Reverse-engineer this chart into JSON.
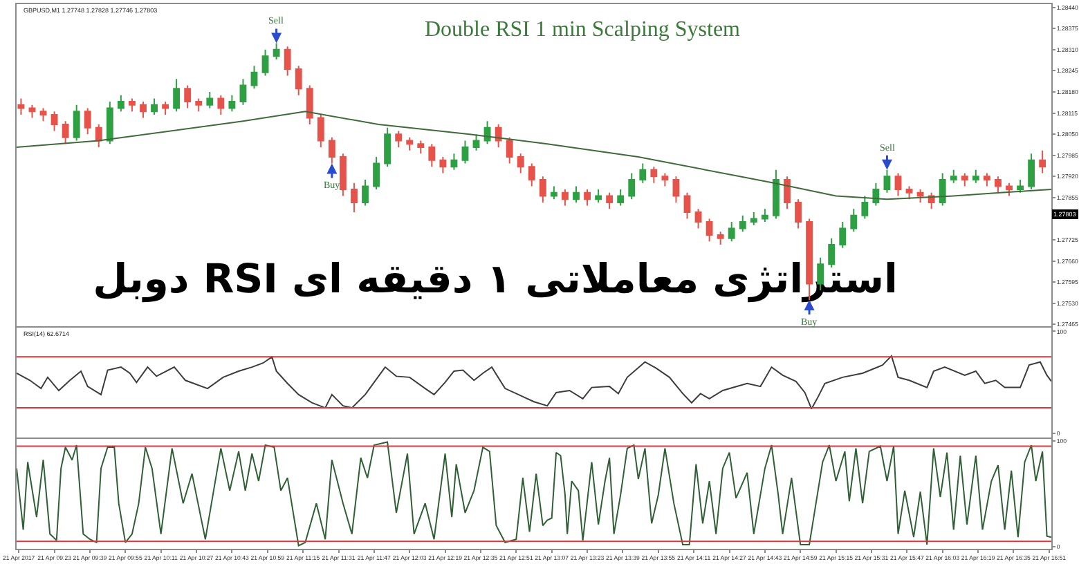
{
  "chart_data": [
    {
      "type": "candlestick",
      "title": "Double RSI 1 min Scalping System",
      "annotations": [
        "GBPUSD,M1 1.27748 1.27828 1.27746 1.27803",
        "استراتژی معاملاتی ۱ دقیقه ای RSI دوبل",
        {
          "text": "Sell",
          "x": "2017-04-21T11:03",
          "y": 1.2833
        },
        {
          "text": "Buy",
          "x": "2017-04-21T11:28",
          "y": 1.2796
        },
        {
          "text": "Buy",
          "x": "2017-04-21T15:03",
          "y": 1.2754
        },
        {
          "text": "Sell",
          "x": "2017-04-21T15:38",
          "y": 1.2794
        },
        {
          "text": "1.27803",
          "y": 1.27803
        }
      ],
      "xlim": [
        "2017-04-21T09:06",
        "2017-04-21T16:52"
      ],
      "tick_labels": "y",
      "ylim": [
        1.2746,
        1.2845
      ],
      "yticks": [
        {
          "value": 1.2844,
          "label": "1.28440"
        },
        1.28375,
        {
          "value": 1.2831,
          "label": "1.28310"
        },
        1.28245,
        {
          "value": 1.2818,
          "label": "1.28180"
        },
        1.28115,
        {
          "value": 1.2805,
          "label": "1.28050"
        },
        1.27985,
        {
          "value": 1.2792,
          "label": "1.27920"
        },
        1.27855,
        1.27725,
        {
          "value": 1.2766,
          "label": "1.27660"
        },
        1.27595,
        {
          "value": 1.2753,
          "label": "1.27530"
        },
        1.27465
      ],
      "x": [
        "2017-04-21T09:08",
        "2017-04-21T09:13",
        "2017-04-21T09:18",
        "2017-04-21T09:23",
        "2017-04-21T09:28",
        "2017-04-21T09:33",
        "2017-04-21T09:38",
        "2017-04-21T09:43",
        "2017-04-21T09:48",
        "2017-04-21T09:53",
        "2017-04-21T09:58",
        "2017-04-21T10:03",
        "2017-04-21T10:08",
        "2017-04-21T10:13",
        "2017-04-21T10:18",
        "2017-04-21T10:23",
        "2017-04-21T10:28",
        "2017-04-21T10:33",
        "2017-04-21T10:38",
        "2017-04-21T10:43",
        "2017-04-21T10:48",
        "2017-04-21T10:53",
        "2017-04-21T10:58",
        "2017-04-21T11:03",
        "2017-04-21T11:08",
        "2017-04-21T11:13",
        "2017-04-21T11:18",
        "2017-04-21T11:23",
        "2017-04-21T11:28",
        "2017-04-21T11:33",
        "2017-04-21T11:38",
        "2017-04-21T11:43",
        "2017-04-21T11:48",
        "2017-04-21T11:53",
        "2017-04-21T11:58",
        "2017-04-21T12:03",
        "2017-04-21T12:08",
        "2017-04-21T12:13",
        "2017-04-21T12:18",
        "2017-04-21T12:23",
        "2017-04-21T12:28",
        "2017-04-21T12:33",
        "2017-04-21T12:38",
        "2017-04-21T12:43",
        "2017-04-21T12:48",
        "2017-04-21T12:53",
        "2017-04-21T12:58",
        "2017-04-21T13:03",
        "2017-04-21T13:08",
        "2017-04-21T13:13",
        "2017-04-21T13:18",
        "2017-04-21T13:23",
        "2017-04-21T13:28",
        "2017-04-21T13:33",
        "2017-04-21T13:38",
        "2017-04-21T13:43",
        "2017-04-21T13:48",
        "2017-04-21T13:53",
        "2017-04-21T13:58",
        "2017-04-21T14:03",
        "2017-04-21T14:08",
        "2017-04-21T14:13",
        "2017-04-21T14:18",
        "2017-04-21T14:23",
        "2017-04-21T14:28",
        "2017-04-21T14:33",
        "2017-04-21T14:38",
        "2017-04-21T14:43",
        "2017-04-21T14:48",
        "2017-04-21T14:53",
        "2017-04-21T14:58",
        "2017-04-21T15:03",
        "2017-04-21T15:08",
        "2017-04-21T15:13",
        "2017-04-21T15:18",
        "2017-04-21T15:23",
        "2017-04-21T15:28",
        "2017-04-21T15:33",
        "2017-04-21T15:38",
        "2017-04-21T15:43",
        "2017-04-21T15:48",
        "2017-04-21T15:53",
        "2017-04-21T15:58",
        "2017-04-21T16:03",
        "2017-04-21T16:08",
        "2017-04-21T16:13",
        "2017-04-21T16:18",
        "2017-04-21T16:23",
        "2017-04-21T16:28",
        "2017-04-21T16:33",
        "2017-04-21T16:38",
        "2017-04-21T16:43",
        "2017-04-21T16:48"
      ],
      "ohlc": [
        [
          1.2814,
          1.2816,
          1.2811,
          1.2813
        ],
        [
          1.2813,
          1.2814,
          1.281,
          1.2812
        ],
        [
          1.2812,
          1.2813,
          1.2809,
          1.2811
        ],
        [
          1.2811,
          1.2812,
          1.2806,
          1.2808
        ],
        [
          1.2808,
          1.2809,
          1.2802,
          1.2804
        ],
        [
          1.2804,
          1.2814,
          1.2803,
          1.2812
        ],
        [
          1.2812,
          1.2813,
          1.2805,
          1.2807
        ],
        [
          1.2807,
          1.2808,
          1.2801,
          1.2803
        ],
        [
          1.2803,
          1.2815,
          1.2802,
          1.2813
        ],
        [
          1.2813,
          1.2817,
          1.2812,
          1.2815
        ],
        [
          1.2815,
          1.2816,
          1.2812,
          1.2814
        ],
        [
          1.2814,
          1.2815,
          1.281,
          1.2812
        ],
        [
          1.2812,
          1.2816,
          1.2811,
          1.2814
        ],
        [
          1.2814,
          1.2815,
          1.2811,
          1.2813
        ],
        [
          1.2813,
          1.2822,
          1.2812,
          1.2819
        ],
        [
          1.2819,
          1.282,
          1.2813,
          1.2815
        ],
        [
          1.2815,
          1.2816,
          1.2812,
          1.2814
        ],
        [
          1.2814,
          1.2818,
          1.2813,
          1.2816
        ],
        [
          1.2816,
          1.2817,
          1.2811,
          1.2813
        ],
        [
          1.2813,
          1.2817,
          1.2812,
          1.2815
        ],
        [
          1.2815,
          1.2822,
          1.2814,
          1.282
        ],
        [
          1.282,
          1.2826,
          1.2819,
          1.2824
        ],
        [
          1.2824,
          1.2831,
          1.2823,
          1.2829
        ],
        [
          1.2829,
          1.2833,
          1.2828,
          1.2831
        ],
        [
          1.2831,
          1.2832,
          1.2823,
          1.2825
        ],
        [
          1.2825,
          1.2826,
          1.2817,
          1.2819
        ],
        [
          1.2819,
          1.282,
          1.2808,
          1.281
        ],
        [
          1.281,
          1.2811,
          1.2801,
          1.2803
        ],
        [
          1.2803,
          1.2804,
          1.2796,
          1.2798
        ],
        [
          1.2798,
          1.2799,
          1.2786,
          1.2788
        ],
        [
          1.2788,
          1.279,
          1.2781,
          1.2784
        ],
        [
          1.2784,
          1.2791,
          1.2783,
          1.2789
        ],
        [
          1.2789,
          1.2798,
          1.2788,
          1.2796
        ],
        [
          1.2796,
          1.2807,
          1.2795,
          1.2805
        ],
        [
          1.2805,
          1.2806,
          1.2801,
          1.2803
        ],
        [
          1.2803,
          1.2804,
          1.28,
          1.2802
        ],
        [
          1.2802,
          1.2803,
          1.2799,
          1.2801
        ],
        [
          1.2801,
          1.2802,
          1.2795,
          1.2797
        ],
        [
          1.2797,
          1.2798,
          1.2793,
          1.2795
        ],
        [
          1.2795,
          1.2799,
          1.2794,
          1.2797
        ],
        [
          1.2797,
          1.2803,
          1.2796,
          1.2801
        ],
        [
          1.2801,
          1.2805,
          1.28,
          1.2803
        ],
        [
          1.2803,
          1.2809,
          1.2802,
          1.2807
        ],
        [
          1.2807,
          1.2808,
          1.2801,
          1.2803
        ],
        [
          1.2803,
          1.2804,
          1.2796,
          1.2798
        ],
        [
          1.2798,
          1.2799,
          1.2793,
          1.2795
        ],
        [
          1.2795,
          1.2796,
          1.2789,
          1.2791
        ],
        [
          1.2791,
          1.2792,
          1.2784,
          1.2786
        ],
        [
          1.2786,
          1.2789,
          1.2785,
          1.2787
        ],
        [
          1.2787,
          1.2788,
          1.2783,
          1.2785
        ],
        [
          1.2785,
          1.2789,
          1.2784,
          1.2787
        ],
        [
          1.2787,
          1.2788,
          1.2783,
          1.2785
        ],
        [
          1.2785,
          1.2788,
          1.2784,
          1.2786
        ],
        [
          1.2786,
          1.2787,
          1.2782,
          1.2784
        ],
        [
          1.2784,
          1.2788,
          1.2783,
          1.2786
        ],
        [
          1.2786,
          1.2793,
          1.2785,
          1.2791
        ],
        [
          1.2791,
          1.2796,
          1.279,
          1.2794
        ],
        [
          1.2794,
          1.2795,
          1.279,
          1.2792
        ],
        [
          1.2792,
          1.2793,
          1.2789,
          1.2791
        ],
        [
          1.2791,
          1.2792,
          1.2784,
          1.2786
        ],
        [
          1.2786,
          1.2787,
          1.2779,
          1.2781
        ],
        [
          1.2781,
          1.2782,
          1.2776,
          1.2778
        ],
        [
          1.2778,
          1.2779,
          1.2772,
          1.2774
        ],
        [
          1.2774,
          1.2775,
          1.2771,
          1.2773
        ],
        [
          1.2773,
          1.2778,
          1.2772,
          1.2776
        ],
        [
          1.2776,
          1.278,
          1.2775,
          1.2778
        ],
        [
          1.2778,
          1.2781,
          1.2777,
          1.2779
        ],
        [
          1.2779,
          1.2782,
          1.2778,
          1.278
        ],
        [
          1.278,
          1.2794,
          1.2779,
          1.2791
        ],
        [
          1.2791,
          1.2792,
          1.2782,
          1.2784
        ],
        [
          1.2784,
          1.2785,
          1.2776,
          1.2778
        ],
        [
          1.2778,
          1.2779,
          1.2754,
          1.2759
        ],
        [
          1.2759,
          1.2767,
          1.2757,
          1.2765
        ],
        [
          1.2765,
          1.2773,
          1.2764,
          1.2771
        ],
        [
          1.2771,
          1.2778,
          1.277,
          1.2776
        ],
        [
          1.2776,
          1.2782,
          1.2775,
          1.278
        ],
        [
          1.278,
          1.2786,
          1.2779,
          1.2784
        ],
        [
          1.2784,
          1.279,
          1.2783,
          1.2788
        ],
        [
          1.2788,
          1.2794,
          1.2787,
          1.2792
        ],
        [
          1.2792,
          1.2793,
          1.2786,
          1.2788
        ],
        [
          1.2788,
          1.2789,
          1.2785,
          1.2787
        ],
        [
          1.2787,
          1.2788,
          1.2784,
          1.2786
        ],
        [
          1.2786,
          1.2787,
          1.2782,
          1.2784
        ],
        [
          1.2784,
          1.2793,
          1.2783,
          1.2791
        ],
        [
          1.2791,
          1.2794,
          1.279,
          1.2792
        ],
        [
          1.2792,
          1.2793,
          1.2789,
          1.2791
        ],
        [
          1.2791,
          1.2794,
          1.279,
          1.2792
        ],
        [
          1.2792,
          1.2793,
          1.2789,
          1.2791
        ],
        [
          1.2791,
          1.2792,
          1.2787,
          1.2789
        ],
        [
          1.2789,
          1.279,
          1.2786,
          1.2788
        ],
        [
          1.2788,
          1.2791,
          1.2787,
          1.2789
        ],
        [
          1.2789,
          1.2799,
          1.2788,
          1.2797
        ],
        [
          1.2797,
          1.28,
          1.2793,
          1.2795
        ]
      ],
      "colors": [
        "#e5534b",
        "#e5534b",
        "#e5534b",
        "#e5534b",
        "#e5534b",
        "#2ea043",
        "#e5534b",
        "#e5534b",
        "#2ea043",
        "#2ea043",
        "#e5534b",
        "#e5534b",
        "#2ea043",
        "#e5534b",
        "#2ea043",
        "#e5534b",
        "#e5534b",
        "#2ea043",
        "#e5534b",
        "#2ea043",
        "#2ea043",
        "#2ea043",
        "#2ea043",
        "#2ea043",
        "#e5534b",
        "#e5534b",
        "#e5534b",
        "#e5534b",
        "#e5534b",
        "#e5534b",
        "#e5534b",
        "#2ea043",
        "#2ea043",
        "#2ea043",
        "#e5534b",
        "#e5534b",
        "#e5534b",
        "#e5534b",
        "#e5534b",
        "#2ea043",
        "#2ea043",
        "#2ea043",
        "#2ea043",
        "#e5534b",
        "#e5534b",
        "#e5534b",
        "#e5534b",
        "#e5534b",
        "#2ea043",
        "#e5534b",
        "#2ea043",
        "#e5534b",
        "#2ea043",
        "#e5534b",
        "#2ea043",
        "#2ea043",
        "#2ea043",
        "#e5534b",
        "#e5534b",
        "#e5534b",
        "#e5534b",
        "#e5534b",
        "#e5534b",
        "#e5534b",
        "#2ea043",
        "#2ea043",
        "#2ea043",
        "#2ea043",
        "#2ea043",
        "#e5534b",
        "#e5534b",
        "#e5534b",
        "#2ea043",
        "#2ea043",
        "#2ea043",
        "#2ea043",
        "#2ea043",
        "#2ea043",
        "#2ea043",
        "#e5534b",
        "#e5534b",
        "#e5534b",
        "#e5534b",
        "#2ea043",
        "#2ea043",
        "#e5534b",
        "#2ea043",
        "#e5534b",
        "#e5534b",
        "#e5534b",
        "#2ea043",
        "#2ea043",
        "#e5534b"
      ],
      "series": [
        {
          "type": "line",
          "color": "#3f6b3a",
          "x": [
            "2017-04-21T09:06",
            "2017-04-21T09:43",
            "2017-04-21T10:48",
            "2017-04-21T11:16",
            "2017-04-21T11:49",
            "2017-04-21T12:30",
            "2017-04-21T13:05",
            "2017-04-21T13:46",
            "2017-04-21T14:47",
            "2017-04-21T15:15",
            "2017-04-21T15:38",
            "2017-04-21T16:08",
            "2017-04-21T16:29",
            "2017-04-21T16:52"
          ],
          "values": [
            1.2801,
            1.2803,
            1.2809,
            1.2812,
            1.2808,
            1.2805,
            1.2802,
            1.2798,
            1.279,
            1.2786,
            1.2785,
            1.2786,
            1.2787,
            1.2788
          ]
        }
      ]
    },
    {
      "type": "line",
      "color": "#3c3c3c",
      "xlim": [
        "2017-04-21T09:06",
        "2017-04-21T16:52"
      ],
      "tick_labels": "y",
      "ylim": [
        -4,
        104
      ],
      "yticks": [
        0,
        100
      ],
      "annotations": [
        "RSI(14) 62.6714"
      ],
      "ref_lines": [
        {
          "axis": "y",
          "value": 75,
          "color": "#d9363e"
        },
        {
          "axis": "y",
          "value": 25,
          "color": "#d9363e"
        }
      ],
      "x": [
        "2017-04-21T09:06",
        "2017-04-21T09:12",
        "2017-04-21T09:17",
        "2017-04-21T09:20",
        "2017-04-21T09:25",
        "2017-04-21T09:30",
        "2017-04-21T09:35",
        "2017-04-21T09:38",
        "2017-04-21T09:44",
        "2017-04-21T09:47",
        "2017-04-21T09:53",
        "2017-04-21T09:57",
        "2017-04-21T10:00",
        "2017-04-21T10:05",
        "2017-04-21T10:09",
        "2017-04-21T10:17",
        "2017-04-21T10:22",
        "2017-04-21T10:32",
        "2017-04-21T10:39",
        "2017-04-21T10:46",
        "2017-04-21T10:52",
        "2017-04-21T10:57",
        "2017-04-21T11:01",
        "2017-04-21T11:03",
        "2017-04-21T11:08",
        "2017-04-21T11:13",
        "2017-04-21T11:19",
        "2017-04-21T11:25",
        "2017-04-21T11:28",
        "2017-04-21T11:33",
        "2017-04-21T11:37",
        "2017-04-21T11:43",
        "2017-04-21T11:49",
        "2017-04-21T11:52",
        "2017-04-21T11:57",
        "2017-04-21T12:03",
        "2017-04-21T12:10",
        "2017-04-21T12:14",
        "2017-04-21T12:19",
        "2017-04-21T12:23",
        "2017-04-21T12:27",
        "2017-04-21T12:32",
        "2017-04-21T12:36",
        "2017-04-21T12:40",
        "2017-04-21T12:46",
        "2017-04-21T12:52",
        "2017-04-21T12:59",
        "2017-04-21T13:05",
        "2017-04-21T13:09",
        "2017-04-21T13:15",
        "2017-04-21T13:21",
        "2017-04-21T13:25",
        "2017-04-21T13:33",
        "2017-04-21T13:37",
        "2017-04-21T13:41",
        "2017-04-21T13:49",
        "2017-04-21T13:54",
        "2017-04-21T14:00",
        "2017-04-21T14:06",
        "2017-04-21T14:10",
        "2017-04-21T14:14",
        "2017-04-21T14:18",
        "2017-04-21T14:24",
        "2017-04-21T14:35",
        "2017-04-21T14:41",
        "2017-04-21T14:46",
        "2017-04-21T14:51",
        "2017-04-21T14:57",
        "2017-04-21T15:01",
        "2017-04-21T15:04",
        "2017-04-21T15:07",
        "2017-04-21T15:10",
        "2017-04-21T15:18",
        "2017-04-21T15:27",
        "2017-04-21T15:36",
        "2017-04-21T15:40",
        "2017-04-21T15:43",
        "2017-04-21T15:48",
        "2017-04-21T15:56",
        "2017-04-21T15:59",
        "2017-04-21T16:04",
        "2017-04-21T16:13",
        "2017-04-21T16:18",
        "2017-04-21T16:22",
        "2017-04-21T16:27",
        "2017-04-21T16:31",
        "2017-04-21T16:38",
        "2017-04-21T16:42",
        "2017-04-21T16:47",
        "2017-04-21T16:50",
        "2017-04-21T16:52"
      ],
      "values": [
        59,
        52,
        44,
        55,
        42,
        52,
        61,
        46,
        38,
        62,
        65,
        59,
        50,
        65,
        56,
        65,
        52,
        44,
        55,
        61,
        65,
        69,
        75,
        61,
        49,
        38,
        30,
        25,
        38,
        27,
        25,
        38,
        56,
        65,
        56,
        55,
        44,
        38,
        50,
        61,
        62,
        52,
        59,
        65,
        44,
        38,
        31,
        27,
        40,
        42,
        34,
        45,
        46,
        39,
        55,
        70,
        64,
        55,
        39,
        30,
        39,
        34,
        42,
        49,
        46,
        65,
        57,
        51,
        40,
        24,
        36,
        49,
        55,
        59,
        67,
        76,
        55,
        52,
        45,
        61,
        65,
        57,
        61,
        49,
        52,
        45,
        45,
        67,
        70,
        57,
        51
      ]
    },
    {
      "type": "line",
      "color": "#2f5f35",
      "xlim": [
        "2017-04-21T09:06",
        "2017-04-21T16:52"
      ],
      "ylim": [
        -2,
        102
      ],
      "yticks": [
        0,
        100
      ],
      "xticks": [
        {
          "value": "2017-04-21T09:07",
          "label": "21 Apr 2017"
        },
        {
          "value": "2017-04-21T09:23",
          "label": "21 Apr 09:23"
        },
        {
          "value": "2017-04-21T09:39",
          "label": "21 Apr 09:39"
        },
        {
          "value": "2017-04-21T09:55",
          "label": "21 Apr 09:55"
        },
        {
          "value": "2017-04-21T10:11",
          "label": "21 Apr 10:11"
        },
        {
          "value": "2017-04-21T10:27",
          "label": "21 Apr 10:27"
        },
        {
          "value": "2017-04-21T10:43",
          "label": "21 Apr 10:43"
        },
        {
          "value": "2017-04-21T10:59",
          "label": "21 Apr 10:59"
        },
        {
          "value": "2017-04-21T11:15",
          "label": "21 Apr 11:15"
        },
        {
          "value": "2017-04-21T11:31",
          "label": "21 Apr 11:31"
        },
        {
          "value": "2017-04-21T11:47",
          "label": "21 Apr 11:47"
        },
        {
          "value": "2017-04-21T12:03",
          "label": "21 Apr 12:03"
        },
        {
          "value": "2017-04-21T12:19",
          "label": "21 Apr 12:19"
        },
        {
          "value": "2017-04-21T12:35",
          "label": "21 Apr 12:35"
        },
        {
          "value": "2017-04-21T12:51",
          "label": "21 Apr 12:51"
        },
        {
          "value": "2017-04-21T13:07",
          "label": "21 Apr 13:07"
        },
        {
          "value": "2017-04-21T13:23",
          "label": "21 Apr 13:23"
        },
        {
          "value": "2017-04-21T13:39",
          "label": "21 Apr 13:39"
        },
        {
          "value": "2017-04-21T13:55",
          "label": "21 Apr 13:55"
        },
        {
          "value": "2017-04-21T14:11",
          "label": "21 Apr 14:11"
        },
        {
          "value": "2017-04-21T14:27",
          "label": "21 Apr 14:27"
        },
        {
          "value": "2017-04-21T14:43",
          "label": "21 Apr 14:43"
        },
        {
          "value": "2017-04-21T14:59",
          "label": "21 Apr 14:59"
        },
        {
          "value": "2017-04-21T15:15",
          "label": "21 Apr 15:15"
        },
        {
          "value": "2017-04-21T15:31",
          "label": "21 Apr 15:31"
        },
        {
          "value": "2017-04-21T15:47",
          "label": "21 Apr 15:47"
        },
        {
          "value": "2017-04-21T16:03",
          "label": "21 Apr 16:03"
        },
        {
          "value": "2017-04-21T16:19",
          "label": "21 Apr 16:19"
        },
        {
          "value": "2017-04-21T16:35",
          "label": "21 Apr 16:35"
        },
        {
          "value": "2017-04-21T16:51",
          "label": "21 Apr 16:51"
        }
      ],
      "ref_lines": [
        {
          "axis": "y",
          "value": 95,
          "color": "#d9363e"
        },
        {
          "axis": "y",
          "value": 5,
          "color": "#d9363e"
        }
      ],
      "x": [
        "2017-04-21T09:06",
        "2017-04-21T09:09",
        "2017-04-21T09:11",
        "2017-04-21T09:15",
        "2017-04-21T09:18",
        "2017-04-21T09:21",
        "2017-04-21T09:24",
        "2017-04-21T09:26",
        "2017-04-21T09:28",
        "2017-04-21T09:31",
        "2017-04-21T09:33",
        "2017-04-21T09:36",
        "2017-04-21T09:39",
        "2017-04-21T09:42",
        "2017-04-21T09:44",
        "2017-04-21T09:47",
        "2017-04-21T09:50",
        "2017-04-21T09:52",
        "2017-04-21T09:55",
        "2017-04-21T09:58",
        "2017-04-21T10:01",
        "2017-04-21T10:04",
        "2017-04-21T10:07",
        "2017-04-21T10:11",
        "2017-04-21T10:16",
        "2017-04-21T10:21",
        "2017-04-21T10:25",
        "2017-04-21T10:31",
        "2017-04-21T10:38",
        "2017-04-21T10:42",
        "2017-04-21T10:46",
        "2017-04-21T10:49",
        "2017-04-21T10:52",
        "2017-04-21T10:55",
        "2017-04-21T10:58",
        "2017-04-21T11:02",
        "2017-04-21T11:05",
        "2017-04-21T11:08",
        "2017-04-21T11:13",
        "2017-04-21T11:16",
        "2017-04-21T11:21",
        "2017-04-21T11:25",
        "2017-04-21T11:28",
        "2017-04-21T11:33",
        "2017-04-21T11:37",
        "2017-04-21T11:41",
        "2017-04-21T11:44",
        "2017-04-21T11:47",
        "2017-04-21T11:53",
        "2017-04-21T11:57",
        "2017-04-21T12:02",
        "2017-04-21T12:05",
        "2017-04-21T12:10",
        "2017-04-21T12:14",
        "2017-04-21T12:19",
        "2017-04-21T12:22",
        "2017-04-21T12:24",
        "2017-04-21T12:28",
        "2017-04-21T12:32",
        "2017-04-21T12:36",
        "2017-04-21T12:39",
        "2017-04-21T12:42",
        "2017-04-21T12:46",
        "2017-04-21T12:51",
        "2017-04-21T12:54",
        "2017-04-21T12:57",
        "2017-04-21T13:00",
        "2017-04-21T13:03",
        "2017-04-21T13:05",
        "2017-04-21T13:07",
        "2017-04-21T13:09",
        "2017-04-21T13:11",
        "2017-04-21T13:13",
        "2017-04-21T13:14",
        "2017-04-21T13:16",
        "2017-04-21T13:19",
        "2017-04-21T13:21",
        "2017-04-21T13:25",
        "2017-04-21T13:28",
        "2017-04-21T13:31",
        "2017-04-21T13:33",
        "2017-04-21T13:35",
        "2017-04-21T13:38",
        "2017-04-21T13:41",
        "2017-04-21T13:44",
        "2017-04-21T13:46",
        "2017-04-21T13:49",
        "2017-04-21T13:52",
        "2017-04-21T13:55",
        "2017-04-21T13:58",
        "2017-04-21T14:02",
        "2017-04-21T14:06",
        "2017-04-21T14:09",
        "2017-04-21T14:12",
        "2017-04-21T14:15",
        "2017-04-21T14:18",
        "2017-04-21T14:21",
        "2017-04-21T14:24",
        "2017-04-21T14:27",
        "2017-04-21T14:30",
        "2017-04-21T14:35",
        "2017-04-21T14:38",
        "2017-04-21T14:43",
        "2017-04-21T14:46",
        "2017-04-21T14:49",
        "2017-04-21T14:51",
        "2017-04-21T14:55",
        "2017-04-21T14:59",
        "2017-04-21T15:03",
        "2017-04-21T15:06",
        "2017-04-21T15:09",
        "2017-04-21T15:12",
        "2017-04-21T15:15",
        "2017-04-21T15:19",
        "2017-04-21T15:21",
        "2017-04-21T15:24",
        "2017-04-21T15:27",
        "2017-04-21T15:30",
        "2017-04-21T15:35",
        "2017-04-21T15:38",
        "2017-04-21T15:41",
        "2017-04-21T15:43",
        "2017-04-21T15:46",
        "2017-04-21T15:50",
        "2017-04-21T15:53",
        "2017-04-21T15:56",
        "2017-04-21T15:59",
        "2017-04-21T16:02",
        "2017-04-21T16:05",
        "2017-04-21T16:08",
        "2017-04-21T16:11",
        "2017-04-21T16:14",
        "2017-04-21T16:18",
        "2017-04-21T16:21",
        "2017-04-21T16:25",
        "2017-04-21T16:28",
        "2017-04-21T16:31",
        "2017-04-21T16:34",
        "2017-04-21T16:37",
        "2017-04-21T16:40",
        "2017-04-21T16:43",
        "2017-04-21T16:45",
        "2017-04-21T16:48",
        "2017-04-21T16:50",
        "2017-04-21T16:52"
      ],
      "values": [
        74,
        16,
        80,
        28,
        82,
        12,
        6,
        74,
        94,
        82,
        96,
        12,
        7,
        4,
        74,
        94,
        94,
        41,
        4,
        12,
        41,
        94,
        74,
        12,
        93,
        41,
        69,
        7,
        93,
        53,
        90,
        53,
        88,
        62,
        96,
        94,
        53,
        65,
        1,
        4,
        41,
        7,
        82,
        41,
        12,
        84,
        65,
        96,
        99,
        32,
        88,
        12,
        41,
        7,
        88,
        28,
        78,
        32,
        53,
        94,
        90,
        20,
        4,
        7,
        65,
        14,
        69,
        20,
        25,
        27,
        89,
        86,
        49,
        12,
        62,
        53,
        6,
        80,
        21,
        62,
        84,
        12,
        49,
        93,
        96,
        64,
        93,
        22,
        49,
        93,
        41,
        2,
        2,
        78,
        22,
        62,
        12,
        74,
        89,
        46,
        70,
        12,
        74,
        96,
        49,
        12,
        65,
        2,
        2,
        41,
        80,
        96,
        62,
        90,
        43,
        93,
        41,
        90,
        95,
        62,
        95,
        12,
        53,
        9,
        52,
        2,
        93,
        47,
        89,
        16,
        86,
        21,
        86,
        16,
        62,
        77,
        16,
        72,
        9,
        80,
        96,
        62,
        90,
        10,
        9
      ]
    }
  ]
}
